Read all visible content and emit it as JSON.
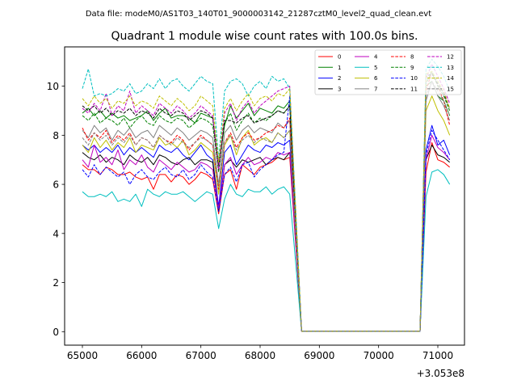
{
  "chart_data": {
    "type": "line",
    "suptitle": "Data file: modeM0/AS1T03_140T01_9000003142_21287cztM0_level2_quad_clean.evt",
    "title": "Quadrant 1 module wise count rates with 100.0s bins.",
    "xlabel": "",
    "ylabel": "",
    "x_offset_label": "+3.053e8",
    "xlim": [
      64700,
      71450
    ],
    "ylim": [
      -0.55,
      11.6
    ],
    "x_ticks": [
      65000,
      66000,
      67000,
      68000,
      69000,
      70000,
      71000
    ],
    "y_ticks": [
      0,
      2,
      4,
      6,
      8,
      10
    ],
    "grid": false,
    "legend_position": "top-right",
    "x": [
      65000,
      65100,
      65200,
      65300,
      65400,
      65500,
      65600,
      65700,
      65800,
      65900,
      66000,
      66100,
      66200,
      66300,
      66400,
      66500,
      66600,
      66700,
      66800,
      66900,
      67000,
      67100,
      67200,
      67300,
      67400,
      67500,
      67600,
      67700,
      67800,
      67900,
      68000,
      68100,
      68200,
      68300,
      68400,
      68500,
      68700,
      68800,
      68900,
      69000,
      69100,
      69200,
      69300,
      69400,
      69500,
      69600,
      69700,
      69800,
      69900,
      70000,
      70100,
      70200,
      70300,
      70400,
      70500,
      70600,
      70700,
      70800,
      70900,
      71000,
      71100,
      71200
    ],
    "series": [
      {
        "name": "0",
        "color": "#ff0000",
        "dash": false,
        "values": [
          6.8,
          6.6,
          6.6,
          6.4,
          6.7,
          6.6,
          6.4,
          6.4,
          6.5,
          6.3,
          6.2,
          6.3,
          5.8,
          6.4,
          6.4,
          6.1,
          6.4,
          6.3,
          6.0,
          6.2,
          6.5,
          6.4,
          6.2,
          4.8,
          6.4,
          6.6,
          5.8,
          6.8,
          6.6,
          6.4,
          6.7,
          6.8,
          6.9,
          7.1,
          7.0,
          7.1,
          0.02,
          0.02,
          0.02,
          0.02,
          0.02,
          0.02,
          0.02,
          0.02,
          0.02,
          0.02,
          0.02,
          0.02,
          0.02,
          0.02,
          0.02,
          0.02,
          0.02,
          0.02,
          0.02,
          0.02,
          0.02,
          6.5,
          7.7,
          7.0,
          6.9,
          6.7
        ]
      },
      {
        "name": "1",
        "color": "#008000",
        "dash": false,
        "values": [
          8.9,
          9.1,
          8.8,
          9.0,
          8.7,
          8.9,
          8.7,
          8.8,
          8.6,
          8.7,
          8.8,
          9.0,
          8.6,
          8.9,
          9.1,
          8.7,
          8.8,
          8.8,
          8.7,
          8.5,
          8.9,
          8.8,
          8.7,
          6.8,
          8.4,
          9.2,
          8.7,
          9.0,
          9.3,
          8.8,
          9.1,
          9.0,
          8.9,
          9.2,
          9.1,
          9.4,
          0.02,
          0.02,
          0.02,
          0.02,
          0.02,
          0.02,
          0.02,
          0.02,
          0.02,
          0.02,
          0.02,
          0.02,
          0.02,
          0.02,
          0.02,
          0.02,
          0.02,
          0.02,
          0.02,
          0.02,
          0.02,
          10.0,
          10.2,
          9.6,
          9.4,
          8.8
        ]
      },
      {
        "name": "2",
        "color": "#0000ff",
        "dash": false,
        "values": [
          7.6,
          7.4,
          7.6,
          7.3,
          7.5,
          7.3,
          7.6,
          7.2,
          7.5,
          7.3,
          7.5,
          7.3,
          7.1,
          7.6,
          7.4,
          7.3,
          7.5,
          7.2,
          7.0,
          7.3,
          7.6,
          7.2,
          7.0,
          5.1,
          7.3,
          7.6,
          6.8,
          7.2,
          7.6,
          7.4,
          7.3,
          7.6,
          7.5,
          7.7,
          7.6,
          7.8,
          0.02,
          0.02,
          0.02,
          0.02,
          0.02,
          0.02,
          0.02,
          0.02,
          0.02,
          0.02,
          0.02,
          0.02,
          0.02,
          0.02,
          0.02,
          0.02,
          0.02,
          0.02,
          0.02,
          0.02,
          0.02,
          7.4,
          8.4,
          7.6,
          7.8,
          7.2
        ]
      },
      {
        "name": "3",
        "color": "#000000",
        "dash": false,
        "values": [
          7.3,
          7.1,
          7.0,
          7.2,
          6.9,
          7.1,
          7.0,
          6.8,
          7.2,
          7.0,
          6.9,
          7.1,
          6.8,
          7.2,
          7.1,
          6.9,
          6.8,
          7.0,
          7.1,
          6.8,
          7.0,
          7.0,
          6.9,
          4.9,
          6.8,
          7.0,
          6.7,
          7.0,
          6.9,
          7.0,
          7.1,
          6.8,
          7.0,
          7.1,
          7.0,
          7.3,
          0.02,
          0.02,
          0.02,
          0.02,
          0.02,
          0.02,
          0.02,
          0.02,
          0.02,
          0.02,
          0.02,
          0.02,
          0.02,
          0.02,
          0.02,
          0.02,
          0.02,
          0.02,
          0.02,
          0.02,
          0.02,
          7.0,
          7.6,
          7.2,
          7.1,
          6.9
        ]
      },
      {
        "name": "4",
        "color": "#bf00bf",
        "dash": false,
        "values": [
          7.0,
          6.7,
          7.6,
          6.9,
          7.1,
          6.8,
          7.4,
          6.6,
          7.0,
          6.8,
          7.2,
          6.7,
          6.5,
          7.0,
          6.8,
          6.6,
          6.9,
          6.7,
          6.5,
          6.6,
          6.9,
          6.8,
          6.6,
          5.0,
          6.8,
          7.1,
          6.4,
          6.8,
          7.1,
          6.8,
          6.9,
          7.1,
          7.0,
          7.3,
          7.2,
          7.3,
          0.02,
          0.02,
          0.02,
          0.02,
          0.02,
          0.02,
          0.02,
          0.02,
          0.02,
          0.02,
          0.02,
          0.02,
          0.02,
          0.02,
          0.02,
          0.02,
          0.02,
          0.02,
          0.02,
          0.02,
          0.02,
          7.0,
          8.0,
          7.5,
          7.3,
          7.0
        ]
      },
      {
        "name": "5",
        "color": "#00bfbf",
        "dash": false,
        "values": [
          5.7,
          5.5,
          5.5,
          5.6,
          5.5,
          5.7,
          5.3,
          5.4,
          5.3,
          5.6,
          5.1,
          5.8,
          5.6,
          5.5,
          5.7,
          5.6,
          5.6,
          5.7,
          5.5,
          5.3,
          5.5,
          5.7,
          5.6,
          4.2,
          5.4,
          6.0,
          5.6,
          5.5,
          5.8,
          5.7,
          5.7,
          5.9,
          5.6,
          5.8,
          5.9,
          5.6,
          0.02,
          0.02,
          0.02,
          0.02,
          0.02,
          0.02,
          0.02,
          0.02,
          0.02,
          0.02,
          0.02,
          0.02,
          0.02,
          0.02,
          0.02,
          0.02,
          0.02,
          0.02,
          0.02,
          0.02,
          0.02,
          5.5,
          6.5,
          6.6,
          6.4,
          6.0
        ]
      },
      {
        "name": "6",
        "color": "#bfbf00",
        "dash": false,
        "values": [
          7.6,
          7.3,
          7.9,
          7.5,
          7.8,
          7.4,
          7.7,
          7.5,
          7.9,
          7.3,
          7.6,
          7.5,
          7.4,
          7.9,
          7.6,
          7.7,
          7.5,
          7.8,
          7.2,
          7.4,
          7.7,
          7.5,
          7.3,
          5.6,
          7.6,
          8.0,
          7.2,
          7.9,
          8.2,
          7.6,
          7.8,
          7.9,
          7.7,
          8.1,
          7.9,
          8.2,
          0.02,
          0.02,
          0.02,
          0.02,
          0.02,
          0.02,
          0.02,
          0.02,
          0.02,
          0.02,
          0.02,
          0.02,
          0.02,
          0.02,
          0.02,
          0.02,
          0.02,
          0.02,
          0.02,
          0.02,
          0.02,
          9.0,
          9.6,
          9.0,
          8.6,
          8.0
        ]
      },
      {
        "name": "7",
        "color": "#808080",
        "dash": false,
        "values": [
          8.2,
          7.9,
          8.4,
          8.1,
          8.3,
          7.8,
          8.2,
          8.0,
          8.3,
          7.9,
          8.1,
          8.2,
          7.9,
          8.4,
          8.2,
          8.0,
          8.3,
          8.1,
          7.8,
          8.0,
          8.2,
          8.1,
          7.9,
          6.0,
          8.1,
          8.4,
          7.8,
          8.2,
          8.4,
          8.1,
          8.3,
          8.2,
          8.1,
          8.5,
          8.3,
          8.6,
          0.02,
          0.02,
          0.02,
          0.02,
          0.02,
          0.02,
          0.02,
          0.02,
          0.02,
          0.02,
          0.02,
          0.02,
          0.02,
          0.02,
          0.02,
          0.02,
          0.02,
          0.02,
          0.02,
          0.02,
          0.02,
          9.4,
          10.2,
          9.6,
          9.2,
          8.6
        ]
      },
      {
        "name": "8",
        "color": "#ff0000",
        "dash": true,
        "values": [
          8.3,
          7.8,
          8.1,
          7.9,
          8.2,
          7.7,
          8.0,
          7.8,
          8.1,
          7.6,
          7.9,
          7.8,
          7.5,
          8.0,
          7.8,
          7.7,
          8.0,
          7.8,
          7.4,
          7.7,
          8.0,
          7.8,
          7.6,
          5.8,
          7.7,
          8.1,
          7.5,
          7.9,
          8.1,
          7.8,
          7.9,
          8.1,
          8.2,
          8.4,
          8.3,
          8.7,
          0.02,
          0.02,
          0.02,
          0.02,
          0.02,
          0.02,
          0.02,
          0.02,
          0.02,
          0.02,
          0.02,
          0.02,
          0.02,
          0.02,
          0.02,
          0.02,
          0.02,
          0.02,
          0.02,
          0.02,
          0.02,
          9.8,
          10.6,
          10.0,
          9.4,
          8.4
        ]
      },
      {
        "name": "9",
        "color": "#008000",
        "dash": true,
        "values": [
          8.8,
          8.6,
          8.9,
          8.5,
          8.7,
          8.6,
          8.4,
          8.7,
          8.3,
          8.6,
          8.8,
          8.5,
          8.4,
          8.8,
          8.6,
          8.5,
          8.7,
          8.6,
          8.3,
          8.5,
          8.7,
          8.6,
          8.4,
          6.5,
          8.5,
          8.9,
          8.2,
          8.6,
          8.9,
          8.5,
          8.7,
          8.6,
          8.8,
          9.0,
          8.9,
          9.2,
          0.02,
          0.02,
          0.02,
          0.02,
          0.02,
          0.02,
          0.02,
          0.02,
          0.02,
          0.02,
          0.02,
          0.02,
          0.02,
          0.02,
          0.02,
          0.02,
          0.02,
          0.02,
          0.02,
          0.02,
          0.02,
          10.1,
          10.6,
          10.0,
          9.6,
          9.0
        ]
      },
      {
        "name": "10",
        "color": "#0000ff",
        "dash": true,
        "values": [
          6.6,
          6.3,
          6.8,
          6.4,
          6.7,
          6.5,
          6.3,
          6.5,
          6.0,
          6.4,
          6.6,
          6.3,
          6.2,
          6.5,
          6.7,
          6.4,
          6.3,
          6.6,
          6.2,
          6.4,
          6.8,
          6.5,
          6.3,
          4.9,
          6.4,
          6.7,
          6.1,
          6.8,
          6.9,
          6.3,
          6.6,
          6.8,
          7.0,
          7.2,
          7.3,
          9.6,
          0.02,
          0.02,
          0.02,
          0.02,
          0.02,
          0.02,
          0.02,
          0.02,
          0.02,
          0.02,
          0.02,
          0.02,
          0.02,
          0.02,
          0.02,
          0.02,
          0.02,
          0.02,
          0.02,
          0.02,
          0.02,
          7.2,
          8.2,
          7.8,
          7.4,
          7.0
        ]
      },
      {
        "name": "11",
        "color": "#000000",
        "dash": true,
        "values": [
          9.2,
          9.0,
          9.2,
          8.9,
          9.1,
          8.8,
          9.0,
          8.9,
          9.1,
          8.8,
          9.0,
          8.9,
          8.7,
          9.1,
          8.9,
          8.8,
          9.0,
          8.9,
          8.6,
          8.8,
          9.0,
          8.9,
          8.7,
          6.6,
          8.6,
          8.6,
          8.5,
          8.7,
          8.8,
          8.5,
          8.6,
          8.7,
          8.8,
          9.0,
          8.9,
          9.2,
          0.02,
          0.02,
          0.02,
          0.02,
          0.02,
          0.02,
          0.02,
          0.02,
          0.02,
          0.02,
          0.02,
          0.02,
          0.02,
          0.02,
          0.02,
          0.02,
          0.02,
          0.02,
          0.02,
          0.02,
          0.02,
          10.4,
          10.5,
          10.1,
          9.7,
          9.1
        ]
      },
      {
        "name": "12",
        "color": "#bf00bf",
        "dash": true,
        "values": [
          9.1,
          8.9,
          9.3,
          9.0,
          9.7,
          8.8,
          9.2,
          9.0,
          9.8,
          8.9,
          9.2,
          9.0,
          8.8,
          9.3,
          9.1,
          8.9,
          9.2,
          9.0,
          8.7,
          8.9,
          9.2,
          9.0,
          8.8,
          6.6,
          8.9,
          9.3,
          8.6,
          9.1,
          9.4,
          8.9,
          9.2,
          9.4,
          9.6,
          9.8,
          9.9,
          10.0,
          0.02,
          0.02,
          0.02,
          0.02,
          0.02,
          0.02,
          0.02,
          0.02,
          0.02,
          0.02,
          0.02,
          0.02,
          0.02,
          0.02,
          0.02,
          0.02,
          0.02,
          0.02,
          0.02,
          0.02,
          0.02,
          10.3,
          10.9,
          10.4,
          9.9,
          9.3
        ]
      },
      {
        "name": "13",
        "color": "#00bfbf",
        "dash": true,
        "values": [
          9.9,
          10.7,
          9.6,
          9.7,
          9.6,
          9.7,
          9.9,
          9.8,
          10.1,
          9.7,
          9.8,
          10.1,
          9.9,
          10.3,
          9.9,
          10.2,
          10.3,
          10.0,
          9.8,
          10.1,
          10.4,
          10.2,
          10.1,
          7.0,
          9.8,
          10.2,
          10.3,
          10.1,
          9.6,
          10.0,
          10.2,
          9.9,
          10.4,
          10.2,
          10.3,
          9.9,
          0.02,
          0.02,
          0.02,
          0.02,
          0.02,
          0.02,
          0.02,
          0.02,
          0.02,
          0.02,
          0.02,
          0.02,
          0.02,
          0.02,
          0.02,
          0.02,
          0.02,
          0.02,
          0.02,
          0.02,
          0.02,
          10.7,
          11.1,
          10.8,
          10.4,
          9.8
        ]
      },
      {
        "name": "14",
        "color": "#bfbf00",
        "dash": true,
        "values": [
          9.5,
          9.2,
          9.6,
          9.3,
          9.5,
          9.1,
          9.4,
          9.3,
          9.6,
          9.2,
          9.4,
          9.3,
          9.1,
          9.6,
          9.4,
          9.2,
          9.5,
          9.3,
          9.0,
          9.2,
          9.6,
          9.4,
          9.2,
          6.9,
          9.1,
          9.5,
          9.0,
          9.4,
          9.7,
          9.2,
          9.5,
          9.6,
          9.4,
          9.7,
          9.6,
          9.9,
          0.02,
          0.02,
          0.02,
          0.02,
          0.02,
          0.02,
          0.02,
          0.02,
          0.02,
          0.02,
          0.02,
          0.02,
          0.02,
          0.02,
          0.02,
          0.02,
          0.02,
          0.02,
          0.02,
          0.02,
          0.02,
          10.5,
          10.6,
          10.2,
          9.8,
          9.1
        ]
      },
      {
        "name": "15",
        "color": "#808080",
        "dash": true,
        "values": [
          7.9,
          7.6,
          8.1,
          7.8,
          8.0,
          7.6,
          7.9,
          7.7,
          8.0,
          7.6,
          7.9,
          7.8,
          7.5,
          8.0,
          7.8,
          7.6,
          7.9,
          7.7,
          7.5,
          7.7,
          7.9,
          7.8,
          7.6,
          5.9,
          7.7,
          8.0,
          7.4,
          7.8,
          8.0,
          7.7,
          7.9,
          7.8,
          7.7,
          8.1,
          7.9,
          8.2,
          0.02,
          0.02,
          0.02,
          0.02,
          0.02,
          0.02,
          0.02,
          0.02,
          0.02,
          0.02,
          0.02,
          0.02,
          0.02,
          0.02,
          0.02,
          0.02,
          0.02,
          0.02,
          0.02,
          0.02,
          0.02,
          9.6,
          10.2,
          9.8,
          9.4,
          8.8
        ]
      }
    ]
  }
}
